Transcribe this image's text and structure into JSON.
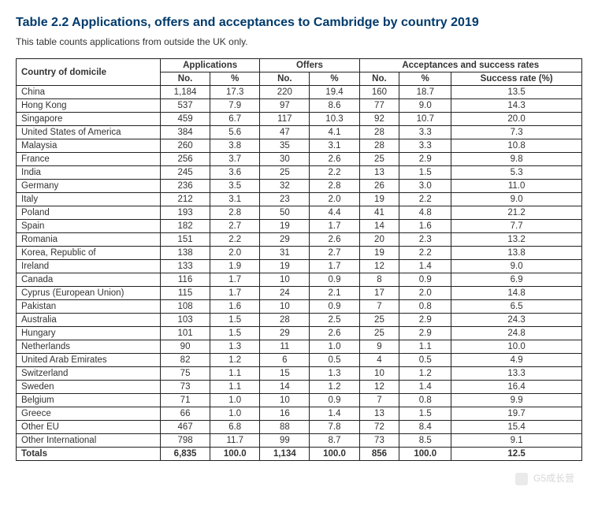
{
  "title": "Table 2.2 Applications, offers and acceptances to Cambridge by country 2019",
  "subtitle": "This table counts applications from outside the UK only.",
  "headers": {
    "country": "Country of domicile",
    "applications": "Applications",
    "offers": "Offers",
    "acceptances": "Acceptances and success rates",
    "no": "No.",
    "pct": "%",
    "success": "Success rate (%)"
  },
  "rows": [
    {
      "country": "China",
      "app_no": "1,184",
      "app_pct": "17.3",
      "off_no": "220",
      "off_pct": "19.4",
      "acc_no": "160",
      "acc_pct": "18.7",
      "success": "13.5"
    },
    {
      "country": "Hong Kong",
      "app_no": "537",
      "app_pct": "7.9",
      "off_no": "97",
      "off_pct": "8.6",
      "acc_no": "77",
      "acc_pct": "9.0",
      "success": "14.3"
    },
    {
      "country": "Singapore",
      "app_no": "459",
      "app_pct": "6.7",
      "off_no": "117",
      "off_pct": "10.3",
      "acc_no": "92",
      "acc_pct": "10.7",
      "success": "20.0"
    },
    {
      "country": "United States of America",
      "app_no": "384",
      "app_pct": "5.6",
      "off_no": "47",
      "off_pct": "4.1",
      "acc_no": "28",
      "acc_pct": "3.3",
      "success": "7.3"
    },
    {
      "country": "Malaysia",
      "app_no": "260",
      "app_pct": "3.8",
      "off_no": "35",
      "off_pct": "3.1",
      "acc_no": "28",
      "acc_pct": "3.3",
      "success": "10.8"
    },
    {
      "country": "France",
      "app_no": "256",
      "app_pct": "3.7",
      "off_no": "30",
      "off_pct": "2.6",
      "acc_no": "25",
      "acc_pct": "2.9",
      "success": "9.8"
    },
    {
      "country": "India",
      "app_no": "245",
      "app_pct": "3.6",
      "off_no": "25",
      "off_pct": "2.2",
      "acc_no": "13",
      "acc_pct": "1.5",
      "success": "5.3"
    },
    {
      "country": "Germany",
      "app_no": "236",
      "app_pct": "3.5",
      "off_no": "32",
      "off_pct": "2.8",
      "acc_no": "26",
      "acc_pct": "3.0",
      "success": "11.0"
    },
    {
      "country": "Italy",
      "app_no": "212",
      "app_pct": "3.1",
      "off_no": "23",
      "off_pct": "2.0",
      "acc_no": "19",
      "acc_pct": "2.2",
      "success": "9.0"
    },
    {
      "country": "Poland",
      "app_no": "193",
      "app_pct": "2.8",
      "off_no": "50",
      "off_pct": "4.4",
      "acc_no": "41",
      "acc_pct": "4.8",
      "success": "21.2"
    },
    {
      "country": "Spain",
      "app_no": "182",
      "app_pct": "2.7",
      "off_no": "19",
      "off_pct": "1.7",
      "acc_no": "14",
      "acc_pct": "1.6",
      "success": "7.7"
    },
    {
      "country": "Romania",
      "app_no": "151",
      "app_pct": "2.2",
      "off_no": "29",
      "off_pct": "2.6",
      "acc_no": "20",
      "acc_pct": "2.3",
      "success": "13.2"
    },
    {
      "country": "Korea, Republic of",
      "app_no": "138",
      "app_pct": "2.0",
      "off_no": "31",
      "off_pct": "2.7",
      "acc_no": "19",
      "acc_pct": "2.2",
      "success": "13.8"
    },
    {
      "country": "Ireland",
      "app_no": "133",
      "app_pct": "1.9",
      "off_no": "19",
      "off_pct": "1.7",
      "acc_no": "12",
      "acc_pct": "1.4",
      "success": "9.0"
    },
    {
      "country": "Canada",
      "app_no": "116",
      "app_pct": "1.7",
      "off_no": "10",
      "off_pct": "0.9",
      "acc_no": "8",
      "acc_pct": "0.9",
      "success": "6.9"
    },
    {
      "country": "Cyprus (European Union)",
      "app_no": "115",
      "app_pct": "1.7",
      "off_no": "24",
      "off_pct": "2.1",
      "acc_no": "17",
      "acc_pct": "2.0",
      "success": "14.8"
    },
    {
      "country": "Pakistan",
      "app_no": "108",
      "app_pct": "1.6",
      "off_no": "10",
      "off_pct": "0.9",
      "acc_no": "7",
      "acc_pct": "0.8",
      "success": "6.5"
    },
    {
      "country": "Australia",
      "app_no": "103",
      "app_pct": "1.5",
      "off_no": "28",
      "off_pct": "2.5",
      "acc_no": "25",
      "acc_pct": "2.9",
      "success": "24.3"
    },
    {
      "country": "Hungary",
      "app_no": "101",
      "app_pct": "1.5",
      "off_no": "29",
      "off_pct": "2.6",
      "acc_no": "25",
      "acc_pct": "2.9",
      "success": "24.8"
    },
    {
      "country": "Netherlands",
      "app_no": "90",
      "app_pct": "1.3",
      "off_no": "11",
      "off_pct": "1.0",
      "acc_no": "9",
      "acc_pct": "1.1",
      "success": "10.0"
    },
    {
      "country": "United Arab Emirates",
      "app_no": "82",
      "app_pct": "1.2",
      "off_no": "6",
      "off_pct": "0.5",
      "acc_no": "4",
      "acc_pct": "0.5",
      "success": "4.9"
    },
    {
      "country": "Switzerland",
      "app_no": "75",
      "app_pct": "1.1",
      "off_no": "15",
      "off_pct": "1.3",
      "acc_no": "10",
      "acc_pct": "1.2",
      "success": "13.3"
    },
    {
      "country": "Sweden",
      "app_no": "73",
      "app_pct": "1.1",
      "off_no": "14",
      "off_pct": "1.2",
      "acc_no": "12",
      "acc_pct": "1.4",
      "success": "16.4"
    },
    {
      "country": "Belgium",
      "app_no": "71",
      "app_pct": "1.0",
      "off_no": "10",
      "off_pct": "0.9",
      "acc_no": "7",
      "acc_pct": "0.8",
      "success": "9.9"
    },
    {
      "country": "Greece",
      "app_no": "66",
      "app_pct": "1.0",
      "off_no": "16",
      "off_pct": "1.4",
      "acc_no": "13",
      "acc_pct": "1.5",
      "success": "19.7"
    },
    {
      "country": "Other EU",
      "app_no": "467",
      "app_pct": "6.8",
      "off_no": "88",
      "off_pct": "7.8",
      "acc_no": "72",
      "acc_pct": "8.4",
      "success": "15.4"
    },
    {
      "country": "Other International",
      "app_no": "798",
      "app_pct": "11.7",
      "off_no": "99",
      "off_pct": "8.7",
      "acc_no": "73",
      "acc_pct": "8.5",
      "success": "9.1"
    }
  ],
  "totals": {
    "country": "Totals",
    "app_no": "6,835",
    "app_pct": "100.0",
    "off_no": "1,134",
    "off_pct": "100.0",
    "acc_no": "856",
    "acc_pct": "100.0",
    "success": "12.5"
  },
  "watermark": "G5成长营",
  "styling": {
    "title_color": "#003a6c",
    "title_fontsize": 16,
    "subtitle_fontsize": 12,
    "table_fontsize": 11.5,
    "border_color": "#222222",
    "text_color": "#333333",
    "background_color": "#ffffff"
  }
}
